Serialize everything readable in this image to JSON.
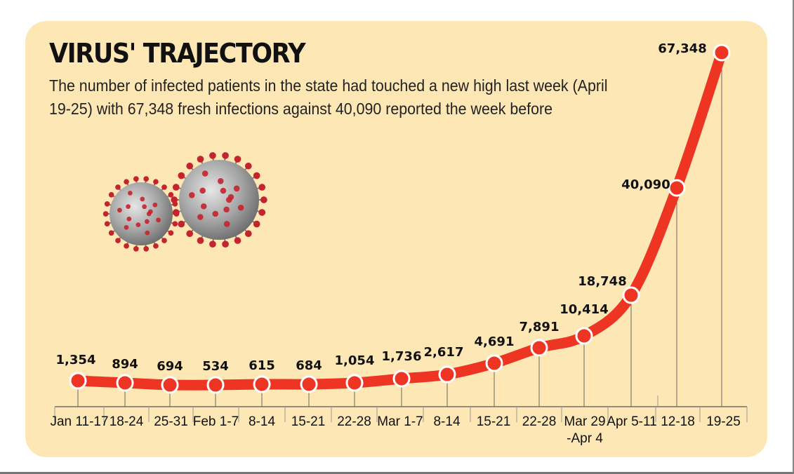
{
  "header": {
    "title": "VIRUS' TRAJECTORY",
    "subtitle": "The number of infected patients in the state had touched a new high last week (April 19-25) with 67,348 fresh infections against 40,090 reported the week before"
  },
  "chart_data": {
    "type": "line",
    "categories": [
      [
        "Jan 11-17"
      ],
      [
        "18-24"
      ],
      [
        "25-31"
      ],
      [
        "Feb 1-7"
      ],
      [
        "8-14"
      ],
      [
        "15-21"
      ],
      [
        "22-28"
      ],
      [
        "Mar 1-7"
      ],
      [
        "8-14"
      ],
      [
        "15-21"
      ],
      [
        "22-28"
      ],
      [
        "Mar 29",
        "-Apr 4"
      ],
      [
        "Apr 5-11"
      ],
      [
        "12-18"
      ],
      [
        "19-25"
      ]
    ],
    "values": [
      1354,
      894,
      694,
      534,
      615,
      684,
      1054,
      1736,
      2617,
      4691,
      7891,
      10414,
      18748,
      40090,
      67348
    ],
    "value_labels": [
      "1,354",
      "894",
      "694",
      "534",
      "615",
      "684",
      "1,054",
      "1,736",
      "2,617",
      "4,691",
      "7,891",
      "10,414",
      "18,748",
      "40,090",
      "67,348"
    ],
    "ylim": [
      0,
      67348
    ],
    "grid": false,
    "colors": {
      "line": "#ee3524",
      "marker_stroke": "#ffffff",
      "background": "#fde7b4",
      "axis": "#555555"
    }
  },
  "illustration": {
    "icon": "coronavirus-icon",
    "colors": {
      "body": "#9a9a9a",
      "spike": "#c4242e"
    }
  }
}
